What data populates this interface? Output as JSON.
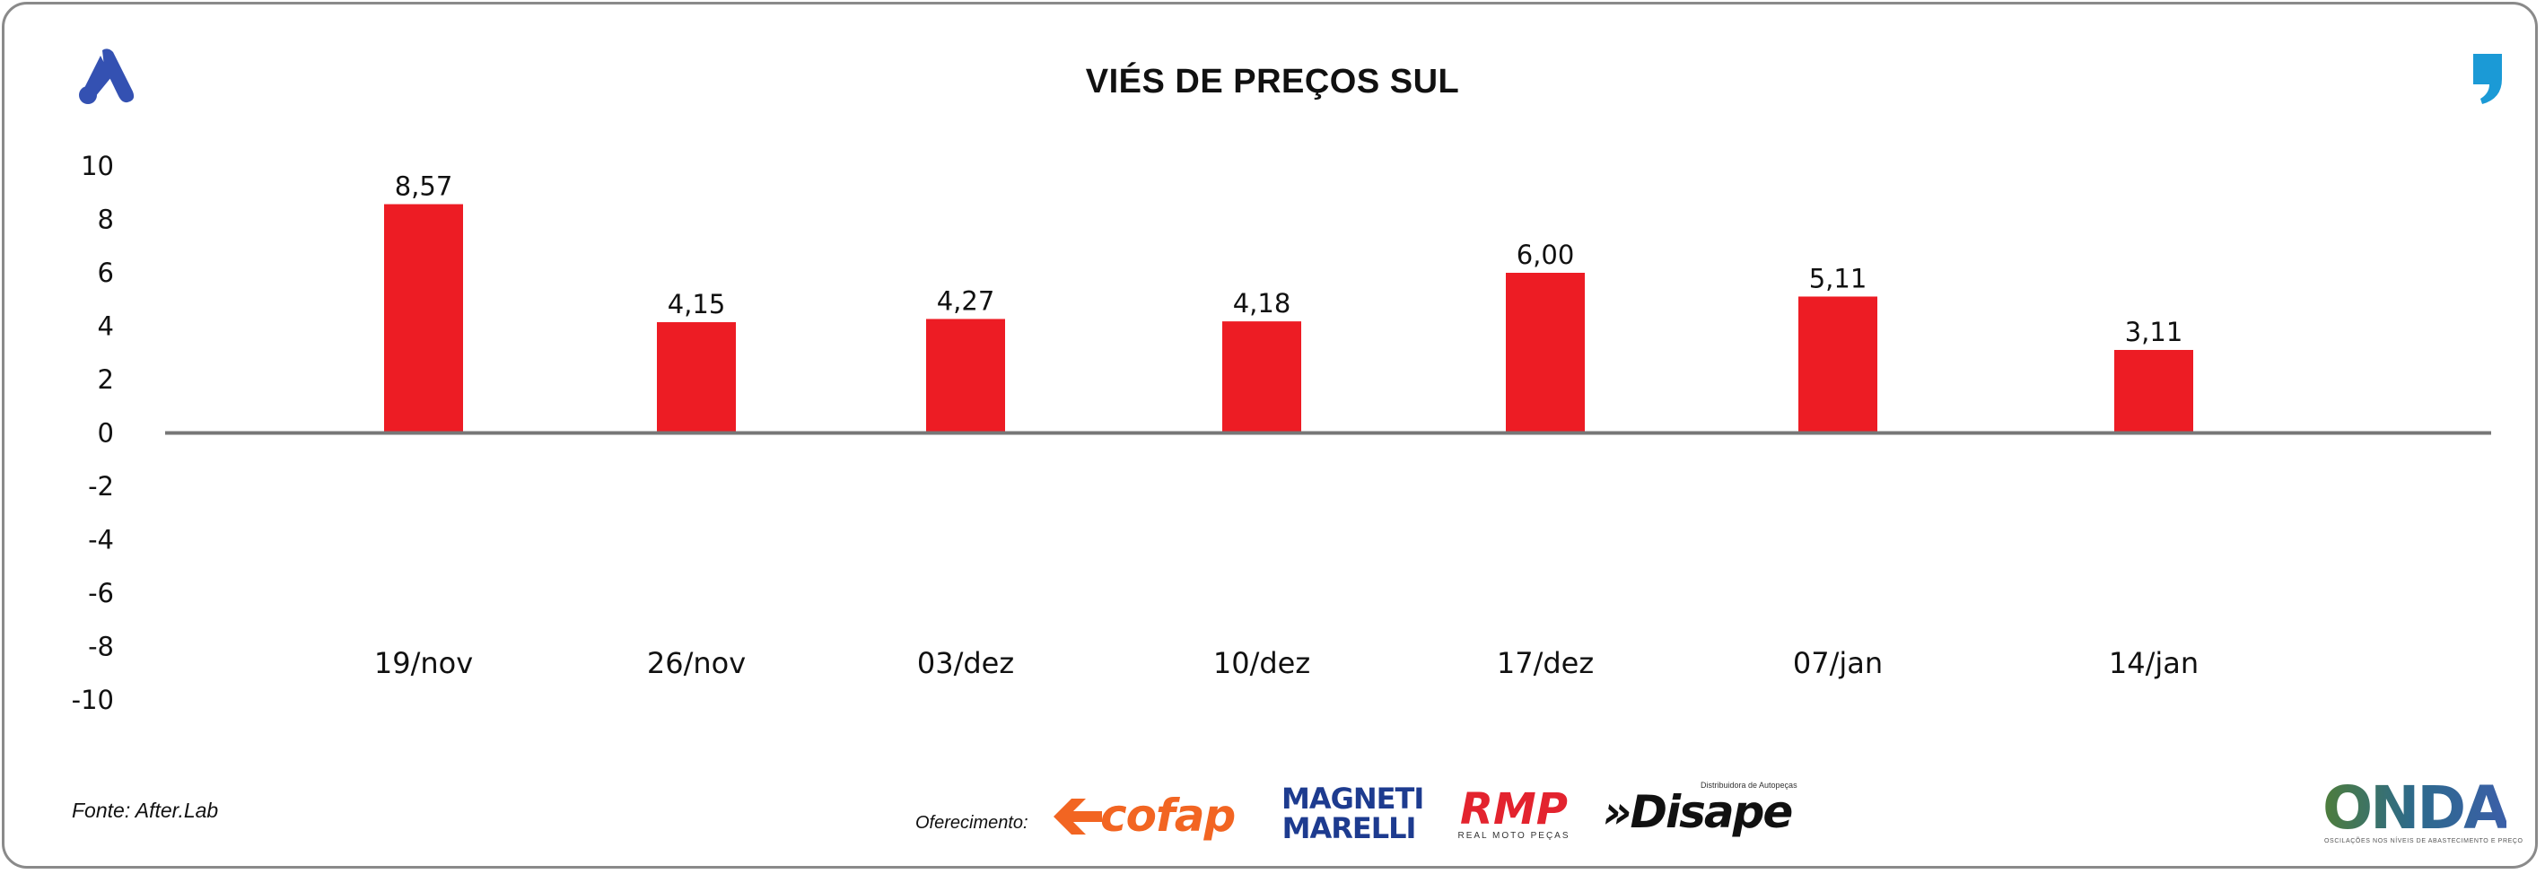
{
  "header": {
    "title": "VIÉS DE PREÇOS SUL",
    "left_logo_icon": "brand-a-logo-icon",
    "right_logo_icon": "comma-quote-logo-icon",
    "left_logo_color": "#3451b2",
    "right_logo_color": "#1b9ad6"
  },
  "footer": {
    "source": "Fonte: After.Lab",
    "sponsor_label": "Oferecimento:",
    "sponsors": {
      "cofap": "cofap",
      "magneti_line1": "MAGNETI",
      "magneti_line2": "MARELLI",
      "rmp": "RMP",
      "rmp_sub": "REAL MOTO PEÇAS",
      "disape": "»Disape",
      "disape_sub": "Distribuidora de Autopeças",
      "onda": "ONDA",
      "onda_sub": "OSCILAÇÕES NOS NÍVEIS DE ABASTECIMENTO E PREÇO"
    }
  },
  "chart_data": {
    "type": "bar",
    "title": "VIÉS DE PREÇOS SUL",
    "categories": [
      "19/nov",
      "26/nov",
      "03/dez",
      "10/dez",
      "17/dez",
      "07/jan",
      "14/jan"
    ],
    "values": [
      8.57,
      4.15,
      4.27,
      4.18,
      6.0,
      5.11,
      3.11
    ],
    "value_labels": [
      "8,57",
      "4,15",
      "4,27",
      "4,18",
      "6,00",
      "5,11",
      "3,11"
    ],
    "yticks": [
      10,
      8,
      6,
      4,
      2,
      0,
      -2,
      -4,
      -6,
      -8,
      -10
    ],
    "ylim": [
      -10,
      10
    ],
    "grid": false,
    "bar_color": "#ed1c24",
    "axis_color": "#777777"
  }
}
